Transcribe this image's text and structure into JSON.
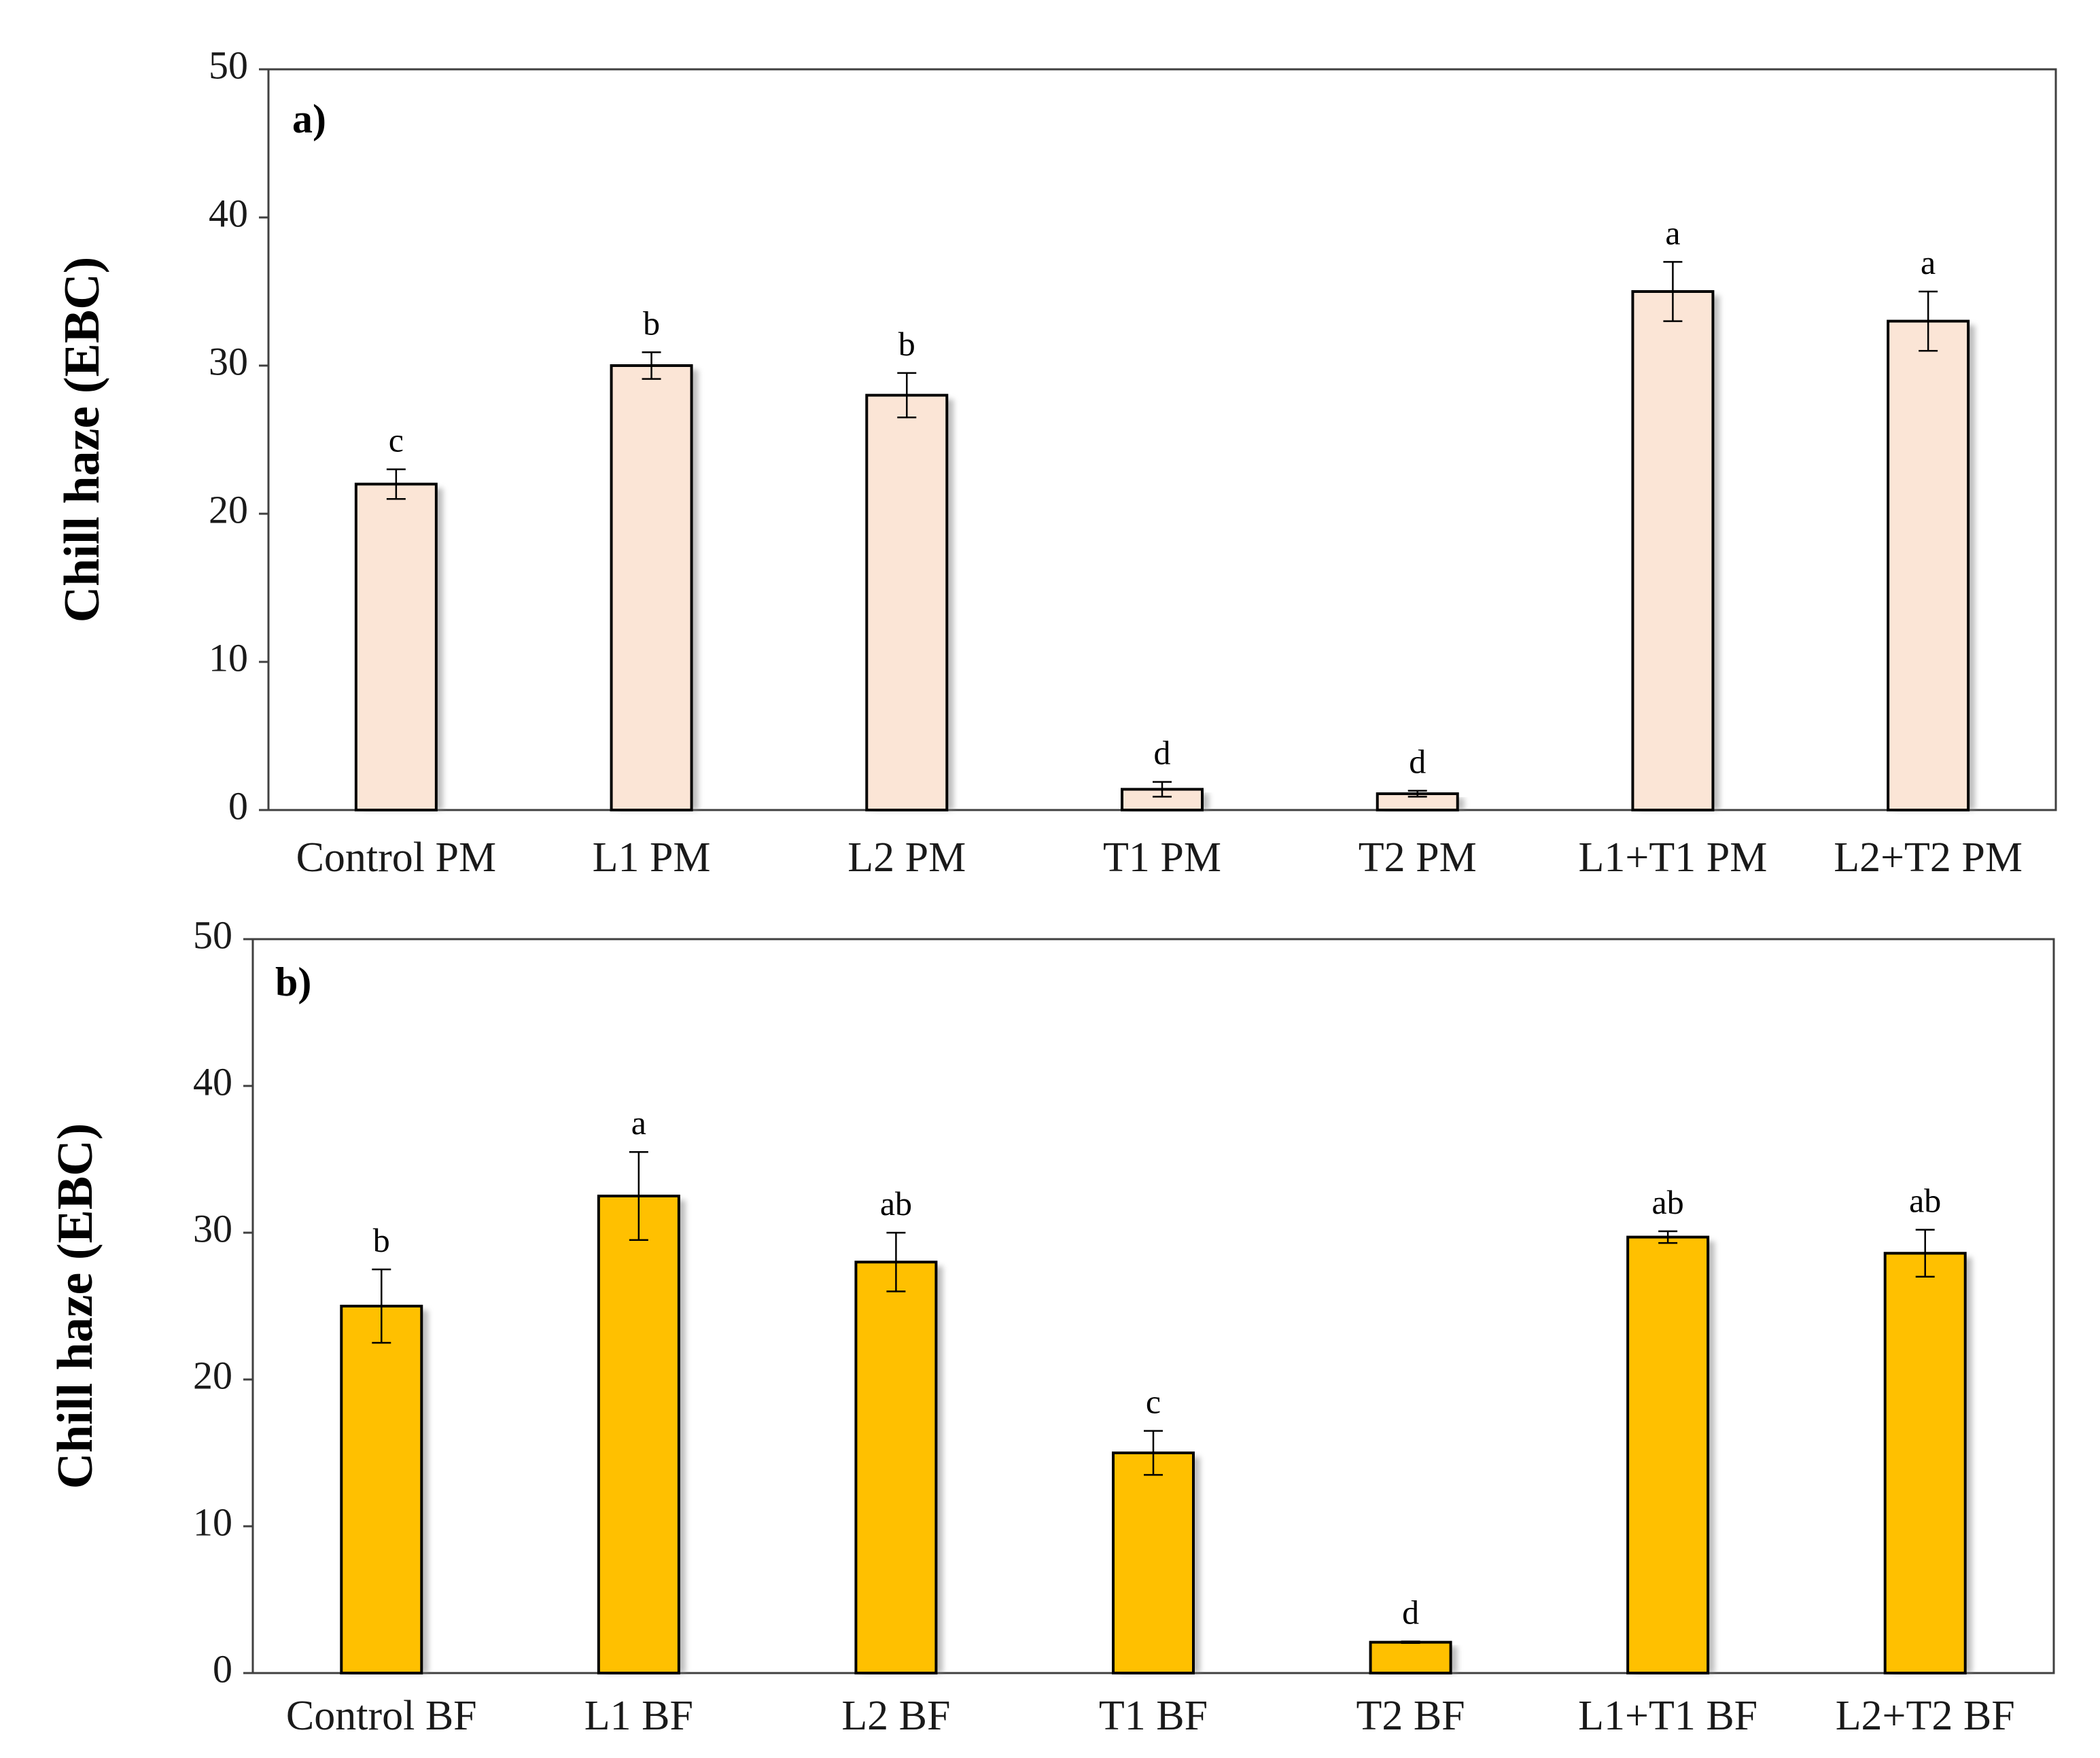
{
  "chart_data": [
    {
      "type": "bar",
      "panel_label": "a)",
      "ylabel": "Chill haze (EBC)",
      "xlabel": "",
      "ylim": [
        0,
        50
      ],
      "yticks": [
        0,
        10,
        20,
        30,
        40,
        50
      ],
      "grid": false,
      "bar_color": "#FBE5D6",
      "categories": [
        "Control PM",
        "L1 PM",
        "L2 PM",
        "T1 PM",
        "T2 PM",
        "L1+T1 PM",
        "L2+T2 PM"
      ],
      "values": [
        22,
        30,
        28,
        1.4,
        1.1,
        35,
        33
      ],
      "errors": [
        1,
        0.9,
        1.5,
        0.5,
        0.2,
        2,
        2
      ],
      "significance": [
        "c",
        "b",
        "b",
        "d",
        "d",
        "a",
        "a"
      ]
    },
    {
      "type": "bar",
      "panel_label": "b)",
      "ylabel": "Chill haze (EBC)",
      "xlabel": "",
      "ylim": [
        0,
        50
      ],
      "yticks": [
        0,
        10,
        20,
        30,
        40,
        50
      ],
      "grid": false,
      "bar_color": "#FFC000",
      "categories": [
        "Control BF",
        "L1 BF",
        "L2 BF",
        "T1 BF",
        "T2 BF",
        "L1+T1 BF",
        "L2+T2 BF"
      ],
      "values": [
        25,
        32.5,
        28,
        15,
        2.1,
        29.7,
        28.6
      ],
      "errors": [
        2.5,
        3,
        2,
        1.5,
        0.05,
        0.4,
        1.6
      ],
      "significance": [
        "b",
        "a",
        "ab",
        "c",
        "d",
        "ab",
        "ab"
      ]
    }
  ]
}
